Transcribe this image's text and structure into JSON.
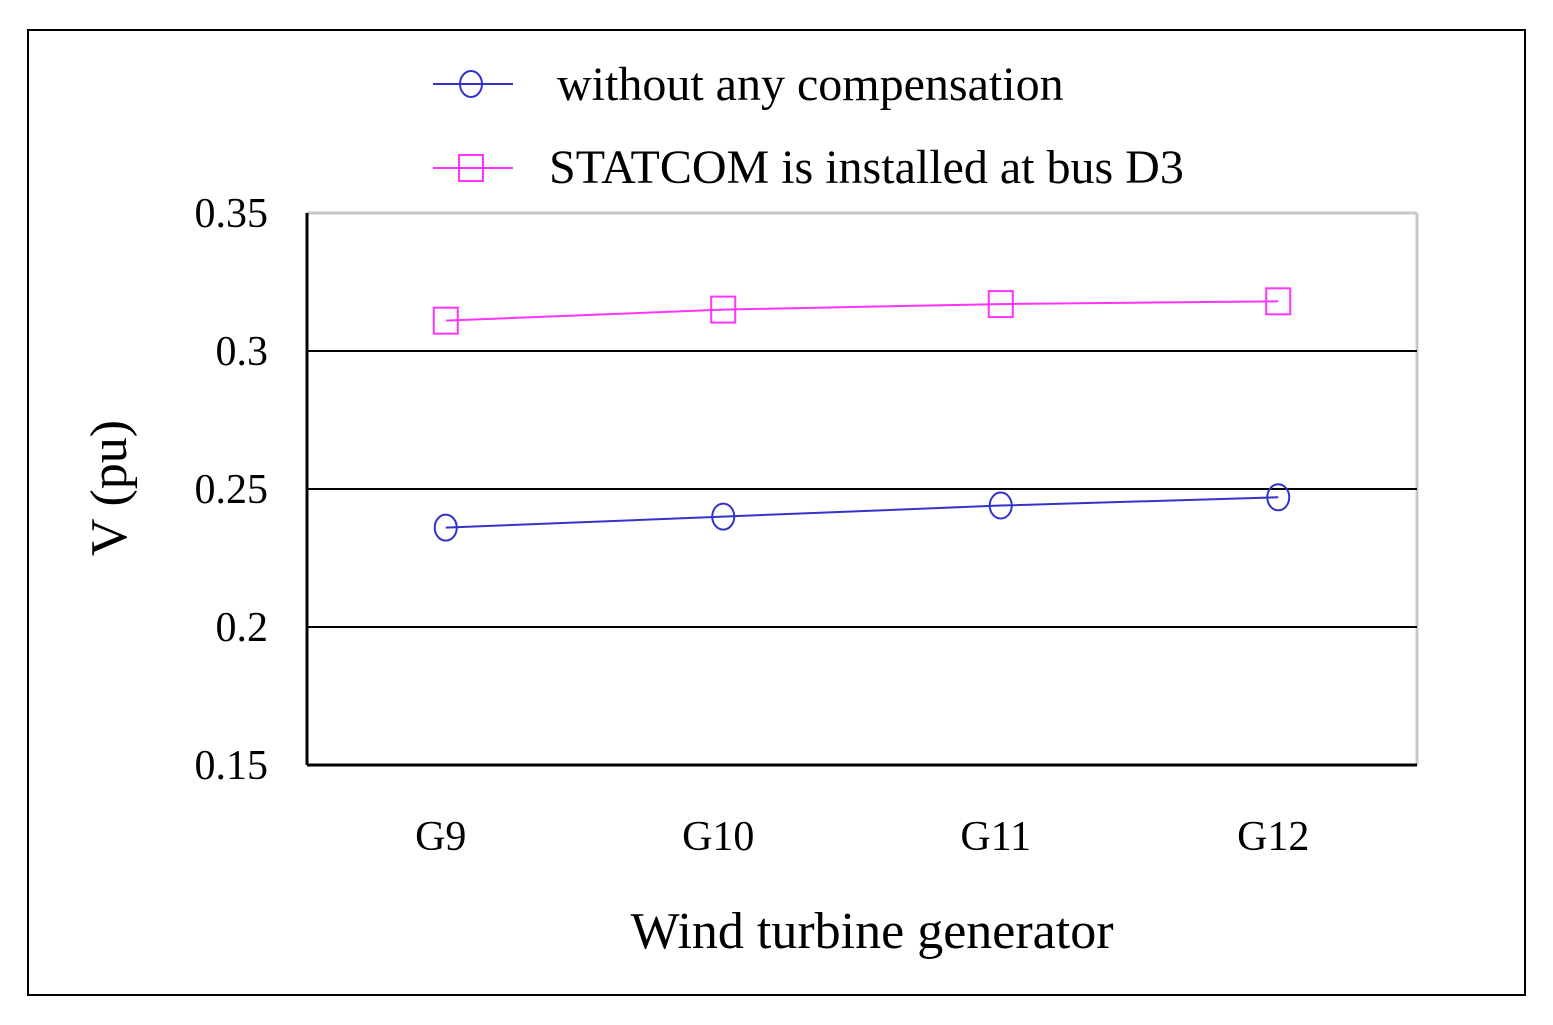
{
  "chart_data": {
    "type": "line",
    "title": "",
    "xlabel": "Wind turbine generator",
    "ylabel": "V (pu)",
    "categories": [
      "G9",
      "G10",
      "G11",
      "G12"
    ],
    "ylim": [
      0.15,
      0.35
    ],
    "yticks": [
      0.35,
      0.3,
      0.25,
      0.2,
      0.15
    ],
    "ytick_labels": [
      "0.35",
      "0.3",
      "0.25",
      "0.2",
      "0.15"
    ],
    "grid": true,
    "legend_position": "top",
    "series": [
      {
        "name": "without any compensation",
        "color": "#3333cc",
        "marker": "circle",
        "values": [
          0.236,
          0.24,
          0.244,
          0.247
        ]
      },
      {
        "name": "STATCOM is installed at bus D3",
        "color": "#ff33ff",
        "marker": "square",
        "values": [
          0.311,
          0.315,
          0.317,
          0.318
        ]
      }
    ]
  }
}
